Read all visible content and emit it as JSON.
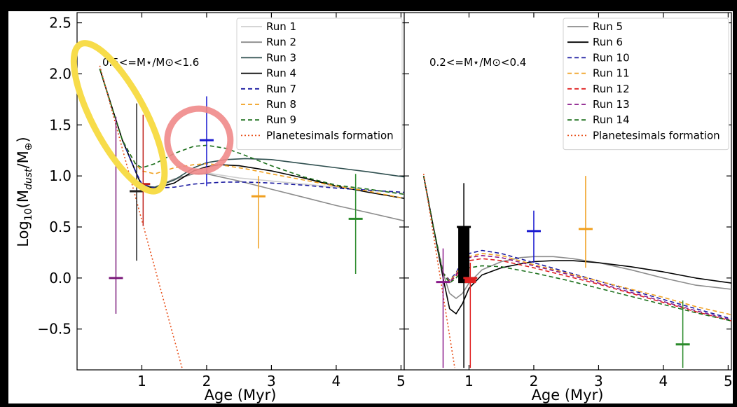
{
  "chart_data": [
    {
      "type": "line",
      "panel": "left",
      "annotation": "0.5<=M⋆/M⊙<1.6",
      "xlabel": "Age (Myr)",
      "ylabel": "Log10(Mdust/M⊕)",
      "xlim": [
        0,
        5.05
      ],
      "ylim": [
        -0.9,
        2.6
      ],
      "xticks": [
        "1",
        "2",
        "3",
        "4",
        "5"
      ],
      "yticks": [
        "2.5",
        "2.0",
        "1.5",
        "1.0",
        "0.5",
        "0.0",
        "−0.5"
      ],
      "legend_position": "top-right",
      "series": [
        {
          "name": "Run 1",
          "color": "#cfcfcf",
          "dash": "",
          "x": [
            0.35,
            0.5,
            0.7,
            0.9,
            1.0,
            1.2,
            1.5,
            1.8,
            2.0,
            2.5,
            3.0,
            3.5,
            4.0,
            4.5,
            5.05
          ],
          "y": [
            2.05,
            1.75,
            1.35,
            1.05,
            0.9,
            0.89,
            0.96,
            1.02,
            1.03,
            0.98,
            0.95,
            0.92,
            0.89,
            0.86,
            0.83
          ]
        },
        {
          "name": "Run 2",
          "color": "#8c8c8c",
          "dash": "",
          "x": [
            0.35,
            0.5,
            0.7,
            0.9,
            1.0,
            1.2,
            1.5,
            1.8,
            2.0,
            2.5,
            3.0,
            3.5,
            4.0,
            4.5,
            5.05
          ],
          "y": [
            2.05,
            1.75,
            1.35,
            1.05,
            0.9,
            0.89,
            0.97,
            1.02,
            1.02,
            0.95,
            0.87,
            0.79,
            0.71,
            0.64,
            0.56
          ]
        },
        {
          "name": "Run 3",
          "color": "#2f4f4f",
          "dash": "",
          "x": [
            0.35,
            0.5,
            0.7,
            0.9,
            1.0,
            1.2,
            1.5,
            1.8,
            2.0,
            2.3,
            2.6,
            3.0,
            3.5,
            4.0,
            4.5,
            5.05
          ],
          "y": [
            2.05,
            1.75,
            1.35,
            1.05,
            0.9,
            0.89,
            0.96,
            1.08,
            1.13,
            1.16,
            1.17,
            1.16,
            1.12,
            1.08,
            1.04,
            0.99
          ]
        },
        {
          "name": "Run 4",
          "color": "#000000",
          "dash": "",
          "x": [
            0.35,
            0.5,
            0.7,
            0.9,
            1.0,
            1.2,
            1.5,
            1.8,
            2.0,
            2.2,
            2.5,
            3.0,
            3.5,
            4.0,
            4.5,
            5.05
          ],
          "y": [
            2.05,
            1.75,
            1.35,
            1.05,
            0.9,
            0.88,
            0.93,
            1.05,
            1.09,
            1.11,
            1.1,
            1.05,
            0.98,
            0.9,
            0.84,
            0.78
          ]
        },
        {
          "name": "Run 7",
          "color": "#1a1aa0",
          "dash": "6,4",
          "x": [
            0.35,
            0.5,
            0.7,
            0.9,
            1.0,
            1.2,
            1.5,
            1.8,
            2.0,
            2.3,
            2.6,
            3.0,
            3.5,
            4.0,
            4.5,
            5.05
          ],
          "y": [
            2.05,
            1.75,
            1.35,
            1.05,
            0.92,
            0.88,
            0.89,
            0.92,
            0.93,
            0.94,
            0.94,
            0.93,
            0.91,
            0.88,
            0.86,
            0.84
          ]
        },
        {
          "name": "Run 8",
          "color": "#f0a020",
          "dash": "6,4",
          "x": [
            0.35,
            0.5,
            0.7,
            0.9,
            1.0,
            1.2,
            1.5,
            1.8,
            2.0,
            2.3,
            2.6,
            3.0,
            3.5,
            4.0,
            4.5,
            5.05
          ],
          "y": [
            2.05,
            1.75,
            1.35,
            1.12,
            1.05,
            1.02,
            1.08,
            1.11,
            1.12,
            1.1,
            1.07,
            1.02,
            0.96,
            0.9,
            0.85,
            0.78
          ]
        },
        {
          "name": "Run 9",
          "color": "#1a6e1a",
          "dash": "6,4",
          "x": [
            0.35,
            0.5,
            0.7,
            0.9,
            1.0,
            1.2,
            1.5,
            1.8,
            2.0,
            2.3,
            2.6,
            3.0,
            3.5,
            4.0,
            4.5,
            5.05
          ],
          "y": [
            2.05,
            1.75,
            1.35,
            1.12,
            1.08,
            1.12,
            1.22,
            1.29,
            1.3,
            1.27,
            1.2,
            1.1,
            0.99,
            0.91,
            0.87,
            0.82
          ]
        },
        {
          "name": "Planetesimals formation",
          "color": "#e8501a",
          "dash": "2,3",
          "x": [
            0.35,
            1.62
          ],
          "y": [
            2.08,
            -0.88
          ]
        }
      ],
      "observations": [
        {
          "x": 0.6,
          "y": 0.0,
          "ylo": -0.35,
          "yhi": 1.58,
          "color": "#7b1a7b"
        },
        {
          "x": 0.92,
          "y": 0.85,
          "ylo": 0.17,
          "yhi": 1.71,
          "color": "#222222"
        },
        {
          "x": 1.02,
          "y": 0.92,
          "ylo": 0.51,
          "yhi": 1.6,
          "color": "#c0201a"
        },
        {
          "x": 2.0,
          "y": 1.35,
          "ylo": 0.9,
          "yhi": 1.78,
          "color": "#1a1ad0"
        },
        {
          "x": 2.8,
          "y": 0.8,
          "ylo": 0.29,
          "yhi": 1.0,
          "color": "#f0a020"
        },
        {
          "x": 4.3,
          "y": 0.58,
          "ylo": 0.04,
          "yhi": 1.02,
          "color": "#2a8a2a"
        }
      ]
    },
    {
      "type": "line",
      "panel": "right",
      "annotation": "0.2<=M⋆/M⊙<0.4",
      "xlabel": "Age (Myr)",
      "xlim": [
        0,
        5.05
      ],
      "ylim": [
        -0.9,
        2.6
      ],
      "xticks": [
        "1",
        "2",
        "3",
        "4",
        "5"
      ],
      "legend_position": "top-right",
      "series": [
        {
          "name": "Run 5",
          "color": "#8c8c8c",
          "dash": "",
          "x": [
            0.3,
            0.45,
            0.6,
            0.7,
            0.8,
            0.9,
            1.0,
            1.2,
            1.5,
            1.8,
            2.0,
            2.3,
            2.6,
            3.0,
            3.5,
            4.0,
            4.5,
            5.05
          ],
          "y": [
            1.0,
            0.5,
            0.05,
            -0.15,
            -0.2,
            -0.15,
            -0.05,
            0.08,
            0.16,
            0.2,
            0.21,
            0.21,
            0.19,
            0.15,
            0.08,
            0.0,
            -0.07,
            -0.11
          ]
        },
        {
          "name": "Run 6",
          "color": "#000000",
          "dash": "",
          "x": [
            0.3,
            0.45,
            0.6,
            0.7,
            0.8,
            0.9,
            1.0,
            1.2,
            1.5,
            1.8,
            2.0,
            2.3,
            2.6,
            3.0,
            3.5,
            4.0,
            4.5,
            5.05
          ],
          "y": [
            1.0,
            0.5,
            0.0,
            -0.3,
            -0.35,
            -0.25,
            -0.1,
            0.03,
            0.1,
            0.14,
            0.16,
            0.17,
            0.17,
            0.15,
            0.11,
            0.06,
            0.0,
            -0.05
          ]
        },
        {
          "name": "Run 10",
          "color": "#1a1aa0",
          "dash": "6,4",
          "x": [
            0.3,
            0.45,
            0.6,
            0.7,
            0.8,
            0.9,
            1.0,
            1.2,
            1.5,
            2.0,
            2.5,
            3.0,
            3.5,
            4.0,
            4.5,
            5.05
          ],
          "y": [
            1.0,
            0.5,
            0.05,
            -0.02,
            0.05,
            0.18,
            0.24,
            0.27,
            0.24,
            0.15,
            0.06,
            -0.03,
            -0.12,
            -0.21,
            -0.3,
            -0.4
          ]
        },
        {
          "name": "Run 11",
          "color": "#f0a020",
          "dash": "6,4",
          "x": [
            0.3,
            0.45,
            0.6,
            0.7,
            0.8,
            0.9,
            1.0,
            1.2,
            1.5,
            2.0,
            2.5,
            3.0,
            3.5,
            4.0,
            4.5,
            5.05
          ],
          "y": [
            1.0,
            0.5,
            0.05,
            -0.03,
            0.04,
            0.16,
            0.21,
            0.24,
            0.22,
            0.13,
            0.05,
            -0.03,
            -0.11,
            -0.19,
            -0.28,
            -0.36
          ]
        },
        {
          "name": "Run 12",
          "color": "#e02020",
          "dash": "6,4",
          "x": [
            0.3,
            0.45,
            0.6,
            0.7,
            0.8,
            0.9,
            1.0,
            1.2,
            1.5,
            2.0,
            2.5,
            3.0,
            3.5,
            4.0,
            4.5,
            5.05
          ],
          "y": [
            1.0,
            0.5,
            0.05,
            -0.04,
            0.02,
            0.12,
            0.17,
            0.19,
            0.17,
            0.1,
            0.02,
            -0.06,
            -0.15,
            -0.24,
            -0.33,
            -0.42
          ]
        },
        {
          "name": "Run 13",
          "color": "#8a1a8a",
          "dash": "6,4",
          "x": [
            0.3,
            0.45,
            0.6,
            0.7,
            0.8,
            0.9,
            1.0,
            1.2,
            1.5,
            2.0,
            2.5,
            3.0,
            3.5,
            4.0,
            4.5,
            5.05
          ],
          "y": [
            1.0,
            0.5,
            0.05,
            -0.04,
            0.03,
            0.15,
            0.2,
            0.22,
            0.2,
            0.12,
            0.04,
            -0.05,
            -0.14,
            -0.23,
            -0.32,
            -0.41
          ]
        },
        {
          "name": "Run 14",
          "color": "#1a6e1a",
          "dash": "6,4",
          "x": [
            0.3,
            0.45,
            0.6,
            0.7,
            0.8,
            0.9,
            1.0,
            1.2,
            1.5,
            2.0,
            2.5,
            3.0,
            3.5,
            4.0,
            4.5,
            5.05
          ],
          "y": [
            1.0,
            0.5,
            0.05,
            -0.05,
            0.0,
            0.07,
            0.1,
            0.12,
            0.11,
            0.05,
            -0.02,
            -0.1,
            -0.18,
            -0.26,
            -0.34,
            -0.42
          ]
        },
        {
          "name": "Planetesimals formation",
          "color": "#e8501a",
          "dash": "2,3",
          "x": [
            0.3,
            0.78
          ],
          "y": [
            1.02,
            -0.88
          ]
        }
      ],
      "observations": [
        {
          "x": 0.6,
          "y": -0.04,
          "ylo": -0.88,
          "yhi": 0.29,
          "color": "#8a1a8a"
        },
        {
          "x": 0.92,
          "y": 0.5,
          "ylo": -0.88,
          "yhi": 0.93,
          "color": "#000000"
        },
        {
          "x": 1.02,
          "y": 0.0,
          "ylo": -0.88,
          "yhi": 0.15,
          "color": "#e02020"
        },
        {
          "x": 2.0,
          "y": 0.46,
          "ylo": 0.15,
          "yhi": 0.66,
          "color": "#1a1ad0"
        },
        {
          "x": 2.8,
          "y": 0.48,
          "ylo": 0.1,
          "yhi": 1.0,
          "color": "#f0a020"
        },
        {
          "x": 4.3,
          "y": -0.65,
          "ylo": -0.88,
          "yhi": -0.22,
          "color": "#2a8a2a"
        }
      ],
      "bars": [
        {
          "x": 0.92,
          "from": -0.05,
          "to": 0.5,
          "color": "#000000"
        },
        {
          "x": 1.02,
          "from": -0.05,
          "to": 0.0,
          "color": "#e02020"
        }
      ]
    }
  ],
  "highlights": [
    {
      "shape": "ellipse",
      "color": "#f7dc4a",
      "target": "left-panel-early-decline"
    },
    {
      "shape": "circle",
      "color": "#f08a8a",
      "target": "left-panel-run9-peak"
    }
  ]
}
